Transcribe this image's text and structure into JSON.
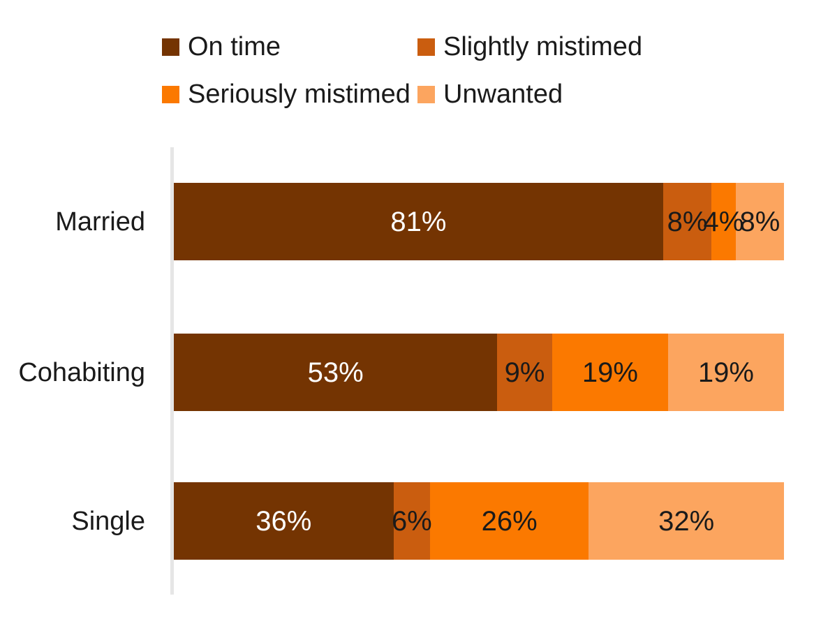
{
  "chart_data": {
    "type": "bar",
    "orientation": "horizontal",
    "stacked": true,
    "title": "",
    "xlabel": "",
    "ylabel": "",
    "xlim": [
      0,
      100
    ],
    "grid": false,
    "legend_position": "top",
    "value_suffix": "%",
    "categories": [
      "Married",
      "Cohabiting",
      "Single"
    ],
    "series": [
      {
        "name": "On time",
        "color": "#743402",
        "label_color": "#ffffff",
        "values": [
          81,
          53,
          36
        ]
      },
      {
        "name": "Slightly mistimed",
        "color": "#ca5d0f",
        "label_color": "#1a1a1a",
        "values": [
          8,
          9,
          6
        ]
      },
      {
        "name": "Seriously mistimed",
        "color": "#fb7900",
        "label_color": "#1a1a1a",
        "values": [
          4,
          19,
          26
        ]
      },
      {
        "name": "Unwanted",
        "color": "#fca55f",
        "label_color": "#1a1a1a",
        "values": [
          8,
          19,
          32
        ]
      }
    ],
    "data_labels": [
      [
        "81%",
        "8%",
        "4%",
        "8%"
      ],
      [
        "53%",
        "9%",
        "19%",
        "19%"
      ],
      [
        "36%",
        "6%",
        "26%",
        "32%"
      ]
    ],
    "axis_line_color": "#e6e6e6"
  }
}
